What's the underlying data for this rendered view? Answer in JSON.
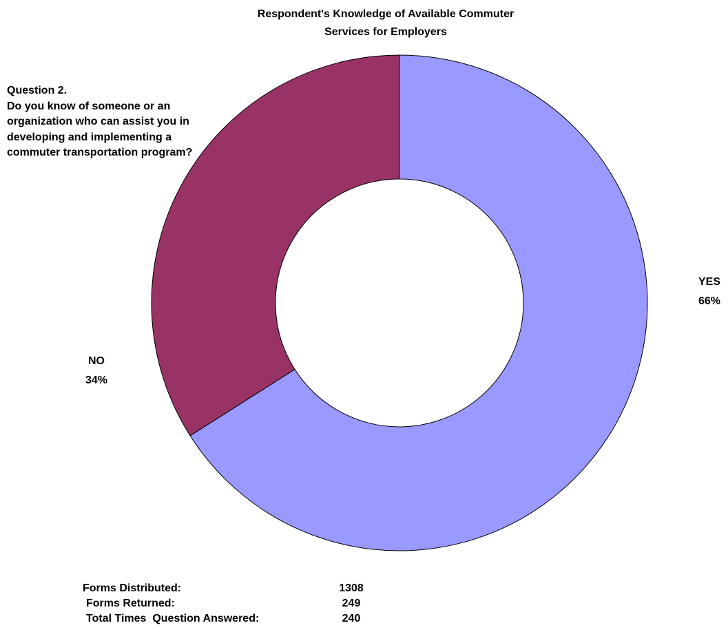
{
  "chart_data": {
    "type": "donut",
    "title": "Respondent's Knowledge of Available Commuter Services for Employers",
    "question_label": "Question 2.",
    "question": "Do you know of someone or an organization who can assist you in developing and implementing a commuter transportation program?",
    "categories": [
      "YES",
      "NO"
    ],
    "values": [
      66,
      34
    ],
    "value_labels": [
      "66%",
      "34%"
    ],
    "colors": [
      "#9999ff",
      "#993366"
    ],
    "stats": [
      {
        "label": "Forms Distributed:",
        "value": 1308
      },
      {
        "label": "Forms Returned:",
        "value": 249
      },
      {
        "label": "Total Times  Question Answered:",
        "value": 240
      }
    ]
  }
}
